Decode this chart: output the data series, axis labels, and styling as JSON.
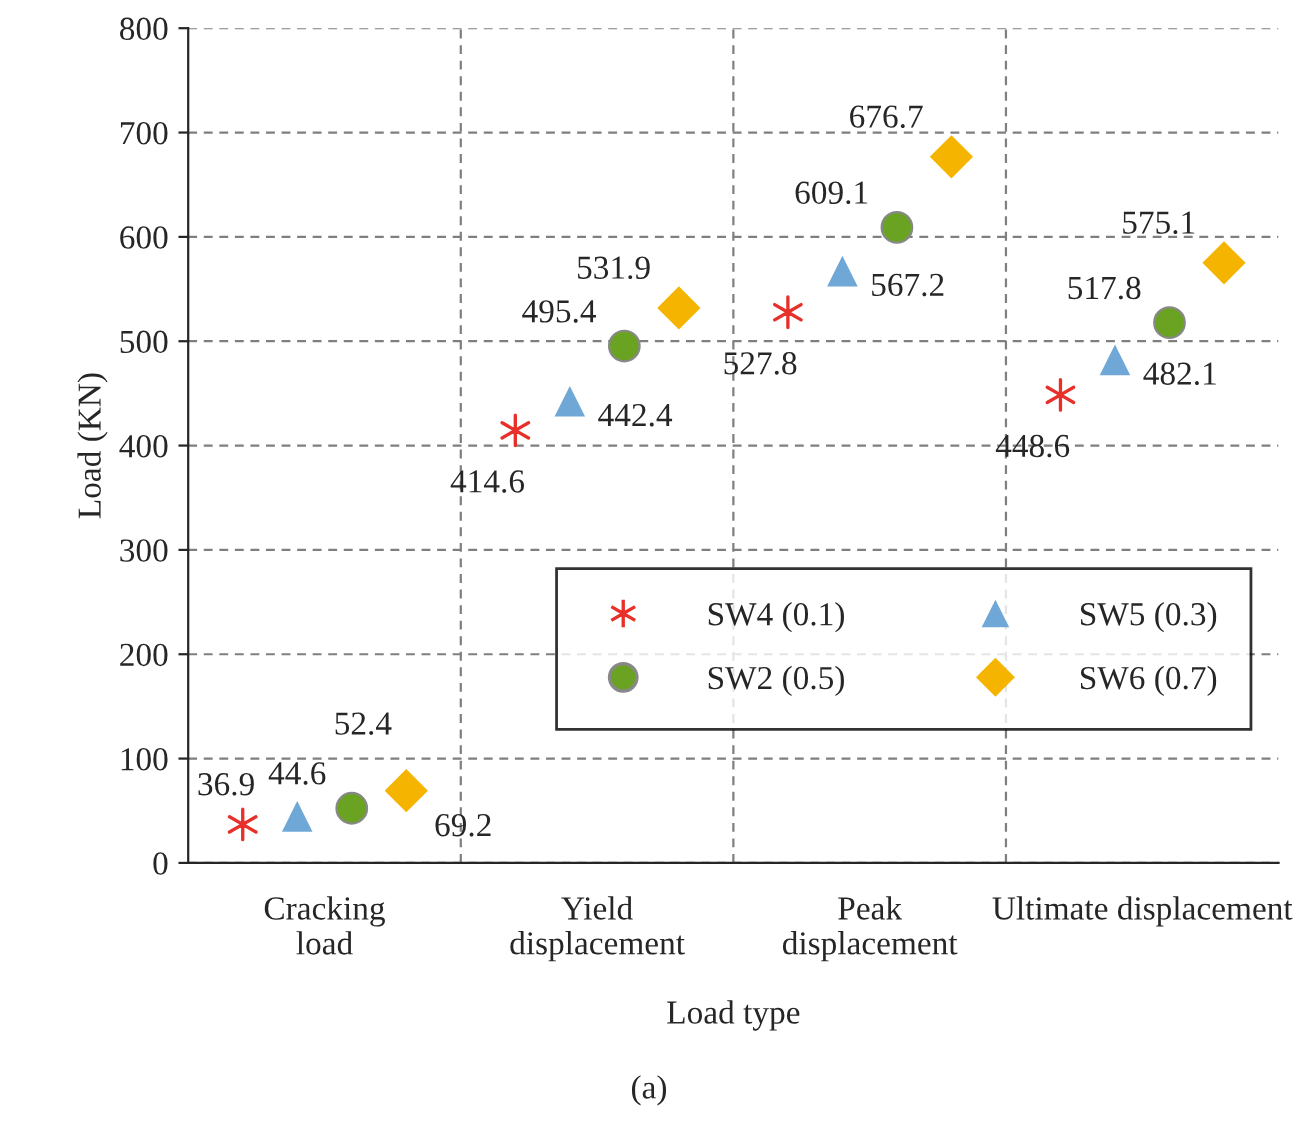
{
  "chart_data": {
    "type": "scatter",
    "xlabel": "Load type",
    "ylabel": "Load (KN)",
    "categories": [
      "Cracking\nload",
      "Yield\ndisplacement",
      "Peak\ndisplacement",
      "Ultimate displacement"
    ],
    "series": [
      {
        "name": "SW4 (0.1)",
        "color": "#e8302a",
        "marker": "cross",
        "values": [
          36.9,
          414.6,
          527.8,
          448.6
        ]
      },
      {
        "name": "SW5 (0.3)",
        "color": "#6fa8d6",
        "marker": "triangle",
        "values": [
          44.6,
          442.4,
          567.2,
          482.1
        ]
      },
      {
        "name": "SW2 (0.5)",
        "color": "#6aa321",
        "marker": "circle",
        "values": [
          52.4,
          495.4,
          609.1,
          517.8
        ]
      },
      {
        "name": "SW6 (0.7)",
        "color": "#f5b400",
        "marker": "diamond",
        "values": [
          69.2,
          531.9,
          676.7,
          575.1
        ]
      }
    ],
    "ylim": [
      0,
      800
    ],
    "yticks": [
      0,
      100,
      200,
      300,
      400,
      500,
      600,
      700,
      800
    ],
    "grid": true,
    "legend": "bottom right",
    "data_labels": true,
    "annotations": [
      "(a)"
    ]
  }
}
